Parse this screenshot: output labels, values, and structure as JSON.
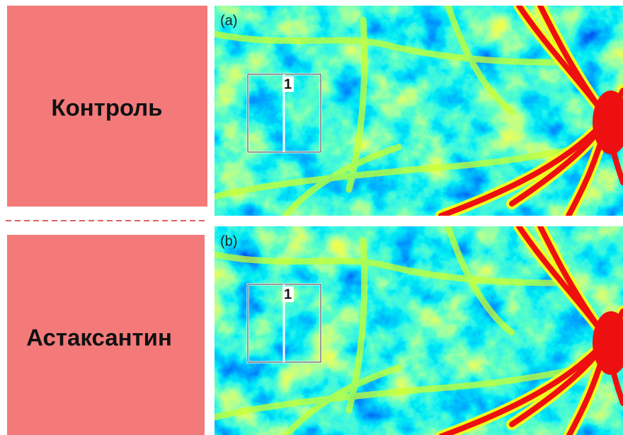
{
  "rows": [
    {
      "label": "Контроль",
      "panel": {
        "tag": "(a)",
        "roi": "1"
      }
    },
    {
      "label": "Астаксантин",
      "panel": {
        "tag": "(b)",
        "roi": "1"
      }
    }
  ]
}
